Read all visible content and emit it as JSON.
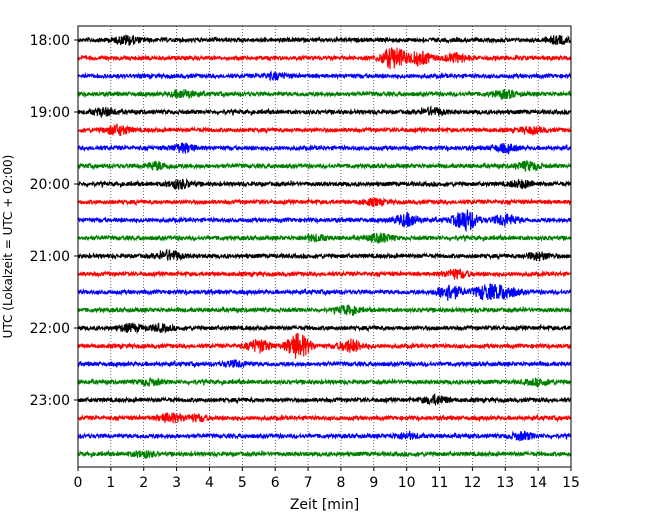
{
  "chart_data": {
    "type": "line",
    "title": "",
    "xlabel": "Zeit  [min]",
    "ylabel": "UTC (Lokalzeit = UTC + 02:00)",
    "xlim": [
      0,
      15
    ],
    "x_ticks": [
      "0",
      "1",
      "2",
      "3",
      "4",
      "5",
      "6",
      "7",
      "8",
      "9",
      "10",
      "11",
      "12",
      "13",
      "14",
      "15"
    ],
    "y_ticks": [
      "18:00",
      "19:00",
      "20:00",
      "21:00",
      "22:00",
      "23:00"
    ],
    "grid": "vertical dotted at each minute",
    "trace_interval_minutes": 15,
    "trace_colors": [
      "#000000",
      "#ff0000",
      "#0000ff",
      "#008000"
    ],
    "series": [
      {
        "start": "18:00",
        "color": "#000000",
        "events": [
          {
            "x": 1.5,
            "amp": 0.6
          },
          {
            "x": 14.6,
            "amp": 0.5
          }
        ]
      },
      {
        "start": "18:15",
        "color": "#ff0000",
        "events": [
          {
            "x": 9.6,
            "amp": 1.6
          },
          {
            "x": 10.4,
            "amp": 0.9
          },
          {
            "x": 11.5,
            "amp": 0.6
          }
        ]
      },
      {
        "start": "18:30",
        "color": "#0000ff",
        "events": [
          {
            "x": 6.0,
            "amp": 0.4
          }
        ]
      },
      {
        "start": "18:45",
        "color": "#008000",
        "events": [
          {
            "x": 3.2,
            "amp": 0.5
          },
          {
            "x": 13.0,
            "amp": 0.5
          }
        ]
      },
      {
        "start": "19:00",
        "color": "#000000",
        "events": [
          {
            "x": 0.8,
            "amp": 0.5
          },
          {
            "x": 10.8,
            "amp": 0.5
          }
        ]
      },
      {
        "start": "19:15",
        "color": "#ff0000",
        "events": [
          {
            "x": 1.2,
            "amp": 0.7
          },
          {
            "x": 13.8,
            "amp": 0.4
          }
        ]
      },
      {
        "start": "19:30",
        "color": "#0000ff",
        "events": [
          {
            "x": 3.2,
            "amp": 0.6
          },
          {
            "x": 13.0,
            "amp": 0.5
          }
        ]
      },
      {
        "start": "19:45",
        "color": "#008000",
        "events": [
          {
            "x": 2.4,
            "amp": 0.5
          },
          {
            "x": 13.7,
            "amp": 0.6
          }
        ]
      },
      {
        "start": "20:00",
        "color": "#000000",
        "events": [
          {
            "x": 3.1,
            "amp": 0.6
          },
          {
            "x": 13.5,
            "amp": 0.5
          }
        ]
      },
      {
        "start": "20:15",
        "color": "#ff0000",
        "events": [
          {
            "x": 9.0,
            "amp": 0.4
          }
        ]
      },
      {
        "start": "20:30",
        "color": "#0000ff",
        "events": [
          {
            "x": 10.0,
            "amp": 0.9
          },
          {
            "x": 11.8,
            "amp": 1.5
          },
          {
            "x": 13.0,
            "amp": 0.8
          }
        ]
      },
      {
        "start": "20:45",
        "color": "#008000",
        "events": [
          {
            "x": 9.2,
            "amp": 0.6
          },
          {
            "x": 7.2,
            "amp": 0.4
          }
        ]
      },
      {
        "start": "21:00",
        "color": "#000000",
        "events": [
          {
            "x": 2.8,
            "amp": 0.7
          },
          {
            "x": 14.0,
            "amp": 0.5
          }
        ]
      },
      {
        "start": "21:15",
        "color": "#ff0000",
        "events": [
          {
            "x": 11.5,
            "amp": 0.6
          }
        ]
      },
      {
        "start": "21:30",
        "color": "#0000ff",
        "events": [
          {
            "x": 11.3,
            "amp": 1.1
          },
          {
            "x": 12.4,
            "amp": 1.0
          },
          {
            "x": 13.0,
            "amp": 0.9
          }
        ]
      },
      {
        "start": "21:45",
        "color": "#008000",
        "events": [
          {
            "x": 8.2,
            "amp": 0.5
          }
        ]
      },
      {
        "start": "22:00",
        "color": "#000000",
        "events": [
          {
            "x": 1.6,
            "amp": 0.5
          },
          {
            "x": 2.5,
            "amp": 0.4
          }
        ]
      },
      {
        "start": "22:15",
        "color": "#ff0000",
        "events": [
          {
            "x": 5.5,
            "amp": 0.9
          },
          {
            "x": 6.7,
            "amp": 1.8
          },
          {
            "x": 8.3,
            "amp": 0.9
          }
        ]
      },
      {
        "start": "22:30",
        "color": "#0000ff",
        "events": [
          {
            "x": 4.8,
            "amp": 0.4
          }
        ]
      },
      {
        "start": "22:45",
        "color": "#008000",
        "events": [
          {
            "x": 2.2,
            "amp": 0.4
          },
          {
            "x": 14.0,
            "amp": 0.4
          }
        ]
      },
      {
        "start": "23:00",
        "color": "#000000",
        "events": [
          {
            "x": 10.9,
            "amp": 0.6
          }
        ]
      },
      {
        "start": "23:15",
        "color": "#ff0000",
        "events": [
          {
            "x": 2.8,
            "amp": 0.6
          },
          {
            "x": 3.6,
            "amp": 0.4
          }
        ]
      },
      {
        "start": "23:30",
        "color": "#0000ff",
        "events": [
          {
            "x": 10.0,
            "amp": 0.4
          },
          {
            "x": 13.5,
            "amp": 0.5
          }
        ]
      },
      {
        "start": "23:45",
        "color": "#008000",
        "events": [
          {
            "x": 2.0,
            "amp": 0.4
          }
        ]
      }
    ]
  }
}
